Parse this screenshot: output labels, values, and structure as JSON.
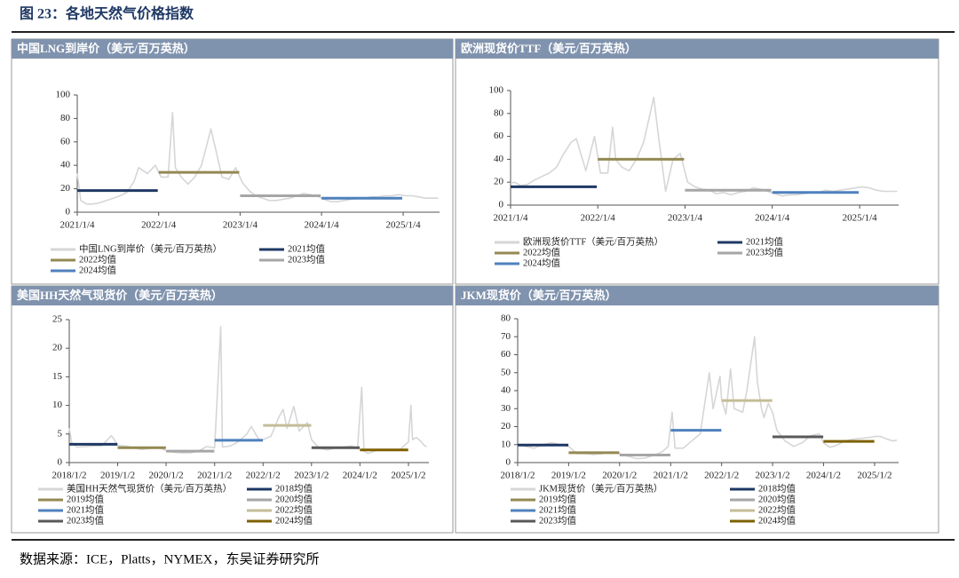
{
  "title": "图 23：各地天然气价格指数",
  "source": "数据来源：ICE，Platts，NYMEX，东吴证券研究所",
  "chart_data": [
    {
      "type": "line",
      "title": "中国LNG到岸价（美元/百万英热）",
      "xlim": [
        "2021/1/4",
        "2025/6/16"
      ],
      "xticks": [
        "2021/1/4",
        "2022/1/4",
        "2023/1/4",
        "2024/1/4",
        "2025/1/4"
      ],
      "ylim": [
        0,
        100
      ],
      "yticks": [
        0,
        20,
        40,
        60,
        80,
        100
      ],
      "series": [
        {
          "name": "中国LNG到岸价（美元/百万英热）",
          "color": "#d6d6d6",
          "x": [
            "2021/1/4",
            "2021/1/20",
            "2021/2/15",
            "2021/3/15",
            "2021/4/15",
            "2021/5/15",
            "2021/6/15",
            "2021/7/15",
            "2021/8/15",
            "2021/9/15",
            "2021/10/6",
            "2021/11/15",
            "2021/12/20",
            "2022/1/15",
            "2022/2/15",
            "2022/3/7",
            "2022/3/20",
            "2022/4/15",
            "2022/5/15",
            "2022/6/15",
            "2022/7/15",
            "2022/8/26",
            "2022/9/15",
            "2022/10/15",
            "2022/11/15",
            "2022/12/15",
            "2023/1/15",
            "2023/2/15",
            "2023/3/15",
            "2023/4/15",
            "2023/5/15",
            "2023/6/15",
            "2023/7/15",
            "2023/8/15",
            "2023/9/15",
            "2023/10/15",
            "2023/11/15",
            "2023/12/15",
            "2024/1/15",
            "2024/2/15",
            "2024/3/15",
            "2024/4/15",
            "2024/5/15",
            "2024/6/15",
            "2024/7/15",
            "2024/8/15",
            "2024/9/15",
            "2024/10/15",
            "2024/11/15",
            "2024/12/15",
            "2025/1/15",
            "2025/2/15",
            "2025/3/15",
            "2025/4/15",
            "2025/5/15",
            "2025/6/10"
          ],
          "values": [
            33,
            10,
            7,
            7,
            8,
            10,
            12,
            14,
            17,
            26,
            38,
            33,
            40,
            30,
            30,
            85,
            38,
            30,
            24,
            30,
            40,
            71,
            55,
            30,
            28,
            38,
            25,
            18,
            14,
            12,
            10,
            10,
            11,
            12,
            14,
            16,
            15,
            14,
            11,
            9,
            9,
            10,
            11,
            12,
            12,
            13,
            13,
            14,
            14,
            15,
            14,
            14,
            13,
            12,
            12,
            12
          ]
        },
        {
          "name": "2021均值",
          "color": "#1f3864",
          "x": [
            "2021/1/4",
            "2021/12/31"
          ],
          "values": [
            18.5,
            18.5
          ]
        },
        {
          "name": "2022均值",
          "color": "#938953",
          "x": [
            "2022/1/4",
            "2022/12/31"
          ],
          "values": [
            34,
            34
          ]
        },
        {
          "name": "2023均值",
          "color": "#a6a6a6",
          "x": [
            "2023/1/4",
            "2023/12/31"
          ],
          "values": [
            14,
            14
          ]
        },
        {
          "name": "2024均值",
          "color": "#4f81bd",
          "x": [
            "2024/1/4",
            "2024/12/31"
          ],
          "values": [
            12,
            12
          ]
        }
      ]
    },
    {
      "type": "line",
      "title": "欧洲现货价TTF（美元/百万英热）",
      "xlim": [
        "2021/1/4",
        "2025/6/16"
      ],
      "xticks": [
        "2021/1/4",
        "2022/1/4",
        "2023/1/4",
        "2024/1/4",
        "2025/1/4"
      ],
      "ylim": [
        0,
        100
      ],
      "yticks": [
        0,
        20,
        40,
        60,
        80,
        100
      ],
      "series": [
        {
          "name": "欧洲现货价TTF（美元/百万英热）",
          "color": "#d6d6d6",
          "x": [
            "2021/1/4",
            "2021/1/20",
            "2021/2/15",
            "2021/3/15",
            "2021/4/15",
            "2021/5/15",
            "2021/6/15",
            "2021/7/15",
            "2021/8/15",
            "2021/9/15",
            "2021/10/6",
            "2021/11/15",
            "2021/12/21",
            "2022/1/15",
            "2022/2/15",
            "2022/3/7",
            "2022/3/20",
            "2022/4/15",
            "2022/5/15",
            "2022/6/15",
            "2022/7/15",
            "2022/8/26",
            "2022/9/15",
            "2022/10/15",
            "2022/11/15",
            "2022/12/15",
            "2023/1/15",
            "2023/2/15",
            "2023/3/15",
            "2023/4/15",
            "2023/5/15",
            "2023/6/15",
            "2023/7/15",
            "2023/8/15",
            "2023/9/15",
            "2023/10/15",
            "2023/11/15",
            "2023/12/15",
            "2024/1/15",
            "2024/2/15",
            "2024/3/15",
            "2024/4/15",
            "2024/5/15",
            "2024/6/15",
            "2024/7/15",
            "2024/8/15",
            "2024/9/15",
            "2024/10/15",
            "2024/11/15",
            "2024/12/15",
            "2025/1/15",
            "2025/2/15",
            "2025/3/15",
            "2025/4/15",
            "2025/5/15",
            "2025/6/10"
          ],
          "values": [
            19,
            20,
            17,
            18,
            22,
            25,
            28,
            33,
            45,
            55,
            58,
            30,
            60,
            28,
            28,
            68,
            40,
            33,
            30,
            40,
            55,
            94,
            60,
            12,
            40,
            45,
            20,
            16,
            14,
            13,
            10,
            11,
            9,
            11,
            12,
            15,
            14,
            12,
            10,
            8,
            9,
            9,
            10,
            11,
            11,
            13,
            12,
            13,
            14,
            15,
            16,
            15,
            13,
            12,
            12,
            12
          ]
        },
        {
          "name": "2021均值",
          "color": "#1f3864",
          "x": [
            "2021/1/4",
            "2021/12/31"
          ],
          "values": [
            16,
            16
          ]
        },
        {
          "name": "2022均值",
          "color": "#938953",
          "x": [
            "2022/1/4",
            "2022/12/31"
          ],
          "values": [
            40,
            40
          ]
        },
        {
          "name": "2023均值",
          "color": "#a6a6a6",
          "x": [
            "2023/1/4",
            "2023/12/31"
          ],
          "values": [
            13,
            13
          ]
        },
        {
          "name": "2024均值",
          "color": "#4f81bd",
          "x": [
            "2024/1/4",
            "2024/12/31"
          ],
          "values": [
            11,
            11
          ]
        }
      ]
    },
    {
      "type": "line",
      "title": "美国HH天然气现货价（美元/百万英热）",
      "xlim": [
        "2018/1/2",
        "2025/6/5"
      ],
      "xticks": [
        "2018/1/2",
        "2019/1/2",
        "2020/1/2",
        "2021/1/2",
        "2022/1/2",
        "2023/1/2",
        "2024/1/2",
        "2025/1/2"
      ],
      "ylim": [
        0,
        25
      ],
      "yticks": [
        0,
        5,
        10,
        15,
        20,
        25
      ],
      "series": [
        {
          "name": "美国HH天然气现货价（美元/百万英热）",
          "color": "#d6d6d6",
          "x": [
            "2018/1/2",
            "2018/1/20",
            "2018/3/2",
            "2018/5/2",
            "2018/7/2",
            "2018/9/2",
            "2018/11/15",
            "2018/12/2",
            "2019/1/2",
            "2019/3/2",
            "2019/5/2",
            "2019/7/2",
            "2019/9/2",
            "2019/11/2",
            "2020/1/2",
            "2020/3/2",
            "2020/5/2",
            "2020/7/2",
            "2020/9/2",
            "2020/11/2",
            "2021/1/2",
            "2021/2/17",
            "2021/3/2",
            "2021/5/2",
            "2021/7/2",
            "2021/9/2",
            "2021/10/5",
            "2021/12/2",
            "2022/1/2",
            "2022/3/2",
            "2022/5/2",
            "2022/6/2",
            "2022/7/2",
            "2022/8/22",
            "2022/10/2",
            "2022/12/2",
            "2023/1/2",
            "2023/3/2",
            "2023/5/2",
            "2023/7/2",
            "2023/9/2",
            "2023/11/2",
            "2023/12/15",
            "2024/1/16",
            "2024/2/2",
            "2024/3/2",
            "2024/5/2",
            "2024/7/2",
            "2024/9/2",
            "2024/11/2",
            "2024/12/2",
            "2025/1/2",
            "2025/1/21",
            "2025/2/2",
            "2025/3/2",
            "2025/4/2",
            "2025/5/2",
            "2025/5/20"
          ],
          "values": [
            6,
            3.5,
            2.7,
            2.8,
            2.9,
            2.9,
            4.7,
            4.2,
            3,
            2.9,
            2.6,
            2.3,
            2.5,
            2.7,
            2.1,
            1.8,
            1.7,
            1.7,
            2,
            2.8,
            2.6,
            23.8,
            2.7,
            2.9,
            3.7,
            5,
            6.3,
            4,
            4,
            4.6,
            8,
            9.3,
            6,
            9.8,
            5.5,
            7,
            4,
            2.5,
            2.2,
            2.6,
            2.7,
            2.9,
            2.4,
            13.2,
            2,
            1.6,
            2.1,
            2.3,
            2.1,
            2.3,
            3,
            3.6,
            10,
            4,
            4.4,
            3.8,
            3,
            2.8
          ]
        },
        {
          "name": "2018均值",
          "color": "#1f3864",
          "x": [
            "2018/1/2",
            "2018/12/31"
          ],
          "values": [
            3.2,
            3.2
          ]
        },
        {
          "name": "2019均值",
          "color": "#938953",
          "x": [
            "2019/1/2",
            "2019/12/31"
          ],
          "values": [
            2.6,
            2.6
          ]
        },
        {
          "name": "2020均值",
          "color": "#a6a6a6",
          "x": [
            "2020/1/2",
            "2020/12/31"
          ],
          "values": [
            2,
            2
          ]
        },
        {
          "name": "2021均值",
          "color": "#4f81bd",
          "x": [
            "2021/1/2",
            "2021/12/31"
          ],
          "values": [
            3.9,
            3.9
          ]
        },
        {
          "name": "2022均值",
          "color": "#c4bd97",
          "x": [
            "2022/1/2",
            "2022/12/31"
          ],
          "values": [
            6.5,
            6.5
          ]
        },
        {
          "name": "2023均值",
          "color": "#595959",
          "x": [
            "2023/1/2",
            "2023/12/31"
          ],
          "values": [
            2.6,
            2.6
          ]
        },
        {
          "name": "2024均值",
          "color": "#7f6000",
          "x": [
            "2024/1/2",
            "2024/12/31"
          ],
          "values": [
            2.2,
            2.2
          ]
        }
      ]
    },
    {
      "type": "line",
      "title": "JKM现货价（美元/百万英热）",
      "xlim": [
        "2018/1/2",
        "2025/6/23"
      ],
      "xticks": [
        "2018/1/2",
        "2019/1/2",
        "2020/1/2",
        "2021/1/2",
        "2022/1/2",
        "2023/1/2",
        "2024/1/2",
        "2025/1/2"
      ],
      "ylim": [
        0,
        80
      ],
      "yticks": [
        0,
        10,
        20,
        30,
        40,
        50,
        60,
        70,
        80
      ],
      "series": [
        {
          "name": "JKM现货价（美元/百万英热）",
          "color": "#d6d6d6",
          "x": [
            "2018/1/2",
            "2018/3/2",
            "2018/5/2",
            "2018/7/2",
            "2018/9/2",
            "2018/11/2",
            "2019/1/2",
            "2019/3/2",
            "2019/5/2",
            "2019/7/2",
            "2019/9/2",
            "2019/11/2",
            "2020/1/2",
            "2020/3/2",
            "2020/5/2",
            "2020/7/2",
            "2020/9/2",
            "2020/11/2",
            "2020/12/15",
            "2021/1/12",
            "2021/2/2",
            "2021/4/2",
            "2021/6/2",
            "2021/8/2",
            "2021/10/6",
            "2021/11/2",
            "2021/12/21",
            "2022/1/2",
            "2022/2/2",
            "2022/3/7",
            "2022/4/2",
            "2022/6/2",
            "2022/7/2",
            "2022/8/26",
            "2022/9/15",
            "2022/10/15",
            "2022/11/2",
            "2022/12/2",
            "2023/1/2",
            "2023/2/2",
            "2023/4/2",
            "2023/6/2",
            "2023/8/2",
            "2023/10/2",
            "2023/12/2",
            "2024/1/2",
            "2024/2/15",
            "2024/4/2",
            "2024/6/2",
            "2024/8/2",
            "2024/10/2",
            "2024/12/2",
            "2025/1/2",
            "2025/2/15",
            "2025/4/2",
            "2025/5/15",
            "2025/6/10"
          ],
          "values": [
            10,
            9,
            8,
            10,
            11,
            10,
            9,
            5,
            5,
            4.5,
            5,
            6,
            5,
            3.5,
            2.2,
            2.5,
            4,
            6,
            9,
            28,
            8,
            8,
            12,
            16,
            50,
            30,
            48,
            35,
            27,
            52,
            30,
            28,
            40,
            70,
            45,
            30,
            25,
            33,
            28,
            18,
            12,
            9,
            11,
            15,
            16,
            11,
            8.5,
            9.5,
            12,
            13,
            13.5,
            14,
            14.5,
            14.5,
            13,
            12,
            12.5
          ]
        },
        {
          "name": "2018均值",
          "color": "#1f3864",
          "x": [
            "2018/1/2",
            "2018/12/31"
          ],
          "values": [
            9.8,
            9.8
          ]
        },
        {
          "name": "2019均值",
          "color": "#938953",
          "x": [
            "2019/1/2",
            "2019/12/31"
          ],
          "values": [
            5.5,
            5.5
          ]
        },
        {
          "name": "2020均值",
          "color": "#a6a6a6",
          "x": [
            "2020/1/2",
            "2020/12/31"
          ],
          "values": [
            4.2,
            4.2
          ]
        },
        {
          "name": "2021均值",
          "color": "#4f81bd",
          "x": [
            "2021/1/2",
            "2021/12/31"
          ],
          "values": [
            18,
            18
          ]
        },
        {
          "name": "2022均值",
          "color": "#c4bd97",
          "x": [
            "2022/1/2",
            "2022/12/31"
          ],
          "values": [
            34.5,
            34.5
          ]
        },
        {
          "name": "2023均值",
          "color": "#595959",
          "x": [
            "2023/1/2",
            "2023/12/31"
          ],
          "values": [
            14.3,
            14.3
          ]
        },
        {
          "name": "2024均值",
          "color": "#7f6000",
          "x": [
            "2024/1/2",
            "2024/12/31"
          ],
          "values": [
            11.8,
            11.8
          ]
        }
      ]
    }
  ]
}
